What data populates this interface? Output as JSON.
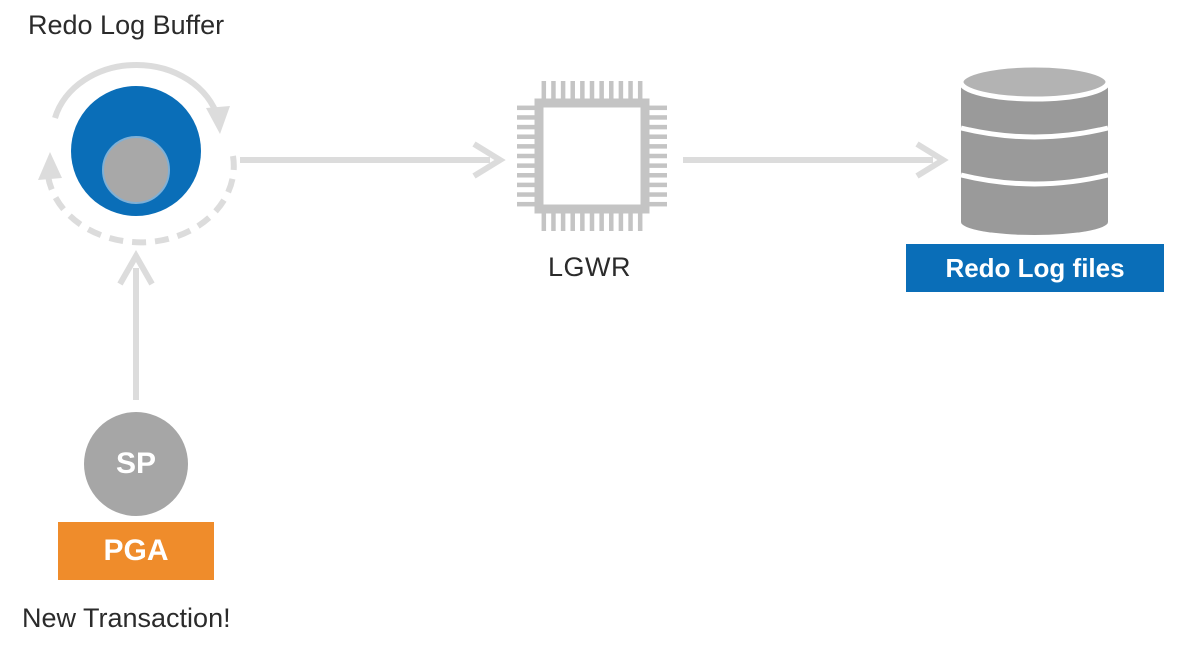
{
  "diagram": {
    "redo_log_buffer": {
      "label": "Redo Log Buffer"
    },
    "lgwr": {
      "label": "LGWR"
    },
    "redo_log_files": {
      "label": "Redo Log files"
    },
    "server_process": {
      "label": "SP"
    },
    "pga": {
      "label": "PGA"
    },
    "transaction": {
      "label": "New Transaction!"
    }
  },
  "colors": {
    "buffer_outer": "#0a6eb8",
    "buffer_inner": "#a8a8a8",
    "arrow": "#dcdcdc",
    "chip": "#c4c4c4",
    "database": "#9a9a9a",
    "files_badge": "#0a6eb8",
    "pga_badge": "#ef8c2b",
    "sp_node": "#a6a6a6",
    "text": "#2b2b2b"
  }
}
